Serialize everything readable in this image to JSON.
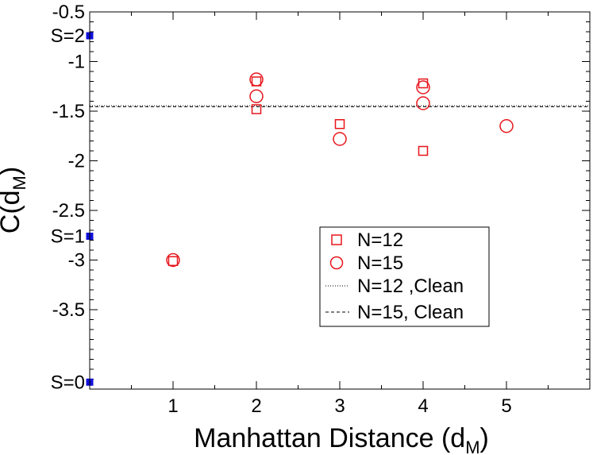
{
  "chart_data": {
    "type": "scatter",
    "xlabel": "Manhattan Distance (d",
    "xlabel_sub": "M",
    "xlabel_end": ")",
    "ylabel": "C(d",
    "ylabel_sub": "M",
    "ylabel_end": ")",
    "xlim": [
      0,
      6
    ],
    "ylim": [
      -4.3,
      -0.5
    ],
    "x_ticks": [
      1,
      2,
      3,
      4,
      5
    ],
    "x_tick_labels": [
      "1",
      "2",
      "3",
      "4",
      "5"
    ],
    "y_ticks": [
      -0.5,
      -1,
      -1.5,
      -2,
      -2.5,
      -3,
      -3.5
    ],
    "y_tick_labels": [
      "-0.5",
      "-1",
      "-1.5",
      "-2",
      "-2.5",
      "-3",
      "-3.5"
    ],
    "x_minor_step": 0.5,
    "y_minor_step": 0.1,
    "grid": false,
    "series": [
      {
        "name": "N=12",
        "marker": "square",
        "color": "#e8151b",
        "points": [
          [
            1,
            -3.01
          ],
          [
            2,
            -1.2
          ],
          [
            2,
            -1.48
          ],
          [
            3,
            -1.63
          ],
          [
            4,
            -1.22
          ],
          [
            4,
            -1.9
          ]
        ]
      },
      {
        "name": "N=15",
        "marker": "circle",
        "color": "#e8151b",
        "points": [
          [
            1,
            -3.0
          ],
          [
            2,
            -1.18
          ],
          [
            2,
            -1.35
          ],
          [
            3,
            -1.78
          ],
          [
            4,
            -1.26
          ],
          [
            4,
            -1.42
          ],
          [
            5,
            -1.65
          ]
        ]
      }
    ],
    "reference_lines": [
      {
        "name": "N=12 ,Clean",
        "y": -1.445,
        "style": "dotted",
        "color": "#000000"
      },
      {
        "name": "N=15, Clean",
        "y": -1.455,
        "style": "dashed",
        "color": "#000000"
      }
    ],
    "spin_markers": [
      {
        "label": "S=2",
        "y": -0.74,
        "color": "#1010d8"
      },
      {
        "label": "S=1",
        "y": -2.76,
        "color": "#1010d8"
      },
      {
        "label": "S=0",
        "y": -4.23,
        "color": "#1010d8"
      }
    ],
    "legend_position": "right-center"
  }
}
